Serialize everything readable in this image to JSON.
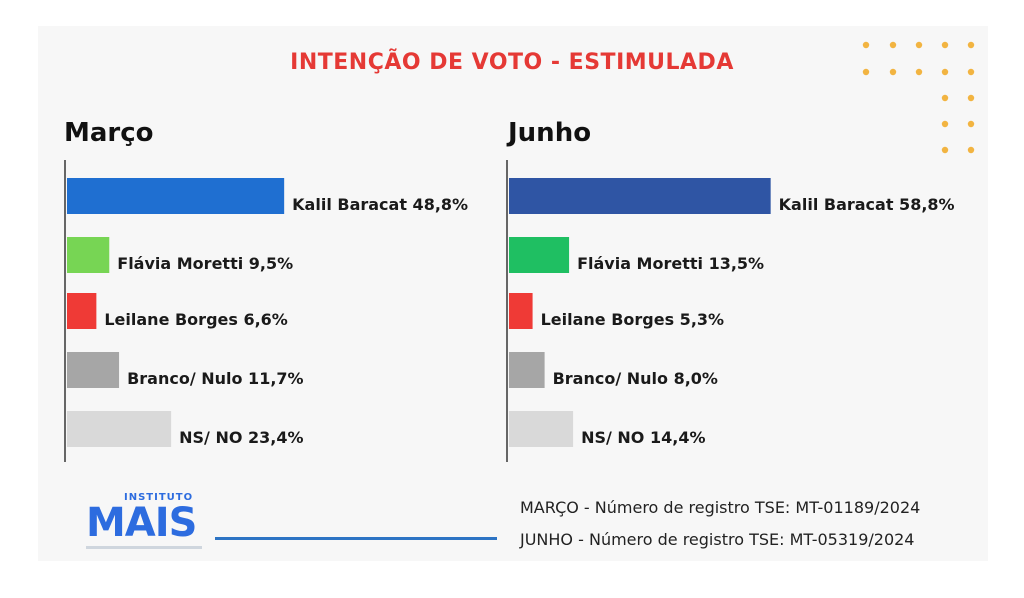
{
  "title": "INTENÇÃO DE VOTO - ESTIMULADA",
  "logo": {
    "small": "INSTITUTO",
    "main": "MAIS"
  },
  "registrations": [
    "MARÇO - Número de registro TSE: MT-01189/2024",
    "JUNHO - Número de registro TSE: MT-05319/2024"
  ],
  "colors": {
    "title": "#e53935",
    "marco_kalil": "#1f6fd1",
    "junho_kalil": "#2f55a4",
    "marco_flavia": "#77d554",
    "junho_flavia": "#1fbf62",
    "leilane": "#ef3a36",
    "branco_nulo": "#a6a6a6",
    "ns_no": "#d9d9d9",
    "dots": "#f2b441"
  },
  "chart_data": [
    {
      "type": "bar",
      "title": "Março",
      "categories": [
        "Kalil Baracat",
        "Flávia Moretti",
        "Leilane Borges",
        "Branco/ Nulo",
        "NS/ NO"
      ],
      "values": [
        48.8,
        9.5,
        6.6,
        11.7,
        23.4
      ],
      "labels": [
        "Kalil Baracat 48,8%",
        "Flávia Moretti 9,5%",
        "Leilane Borges 6,6%",
        "Branco/ Nulo 11,7%",
        "NS/ NO 23,4%"
      ],
      "colors": [
        "#1f6fd1",
        "#77d554",
        "#ef3a36",
        "#a6a6a6",
        "#d9d9d9"
      ],
      "orientation": "horizontal",
      "grid": false
    },
    {
      "type": "bar",
      "title": "Junho",
      "categories": [
        "Kalil Baracat",
        "Flávia Moretti",
        "Leilane Borges",
        "Branco/ Nulo",
        "NS/ NO"
      ],
      "values": [
        58.8,
        13.5,
        5.3,
        8.0,
        14.4
      ],
      "labels": [
        "Kalil Baracat 58,8%",
        "Flávia Moretti 13,5%",
        "Leilane Borges 5,3%",
        "Branco/ Nulo 8,0%",
        "NS/ NO 14,4%"
      ],
      "colors": [
        "#2f55a4",
        "#1fbf62",
        "#ef3a36",
        "#a6a6a6",
        "#d9d9d9"
      ],
      "orientation": "horizontal",
      "grid": false
    }
  ]
}
